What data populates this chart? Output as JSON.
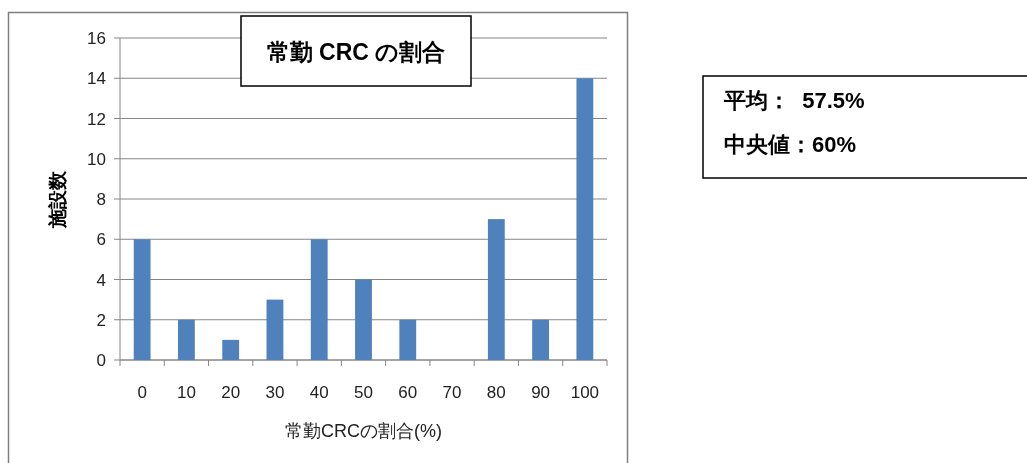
{
  "chart_data": {
    "type": "bar",
    "title": "常勤 CRC の割合",
    "xlabel": "常勤CRCの割合(%)",
    "ylabel": "施設数",
    "categories": [
      "0",
      "10",
      "20",
      "30",
      "40",
      "50",
      "60",
      "70",
      "80",
      "90",
      "100"
    ],
    "values": [
      6,
      2,
      1,
      3,
      6,
      4,
      2,
      0,
      7,
      2,
      14
    ],
    "color": "#4f81bd",
    "ylim": [
      0,
      16
    ],
    "yticks": [
      0,
      2,
      4,
      6,
      8,
      10,
      12,
      14,
      16
    ],
    "grid": "y",
    "annotations": [
      "平均：  57.5%",
      "中央値：60%"
    ]
  }
}
